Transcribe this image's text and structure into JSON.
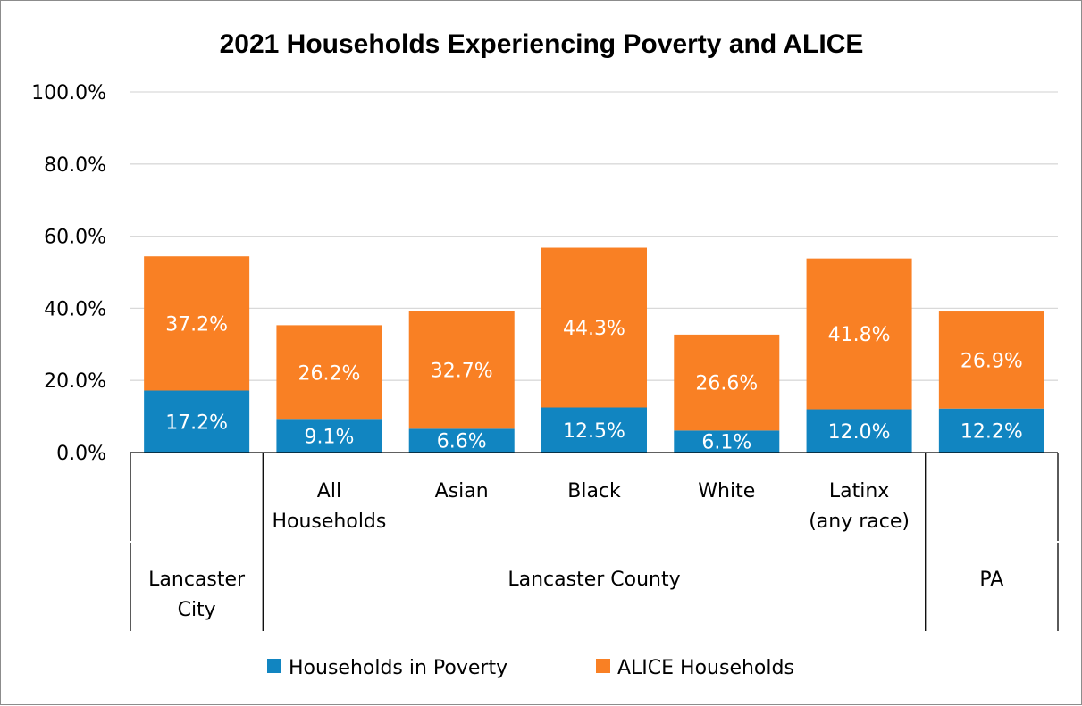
{
  "chart_data": {
    "type": "bar",
    "stacked": true,
    "title": "2021 Households Experiencing Poverty and ALICE",
    "xlabel": "",
    "ylabel": "",
    "ylim": [
      0,
      100
    ],
    "y_ticks": [
      "0.0%",
      "20.0%",
      "40.0%",
      "60.0%",
      "80.0%",
      "100.0%"
    ],
    "grid": true,
    "legend_position": "bottom",
    "categories": [
      {
        "lines": [],
        "group": "Lancaster City"
      },
      {
        "lines": [
          "All",
          "Households"
        ],
        "group": "Lancaster County"
      },
      {
        "lines": [
          "Asian"
        ],
        "group": "Lancaster County"
      },
      {
        "lines": [
          "Black"
        ],
        "group": "Lancaster County"
      },
      {
        "lines": [
          "White"
        ],
        "group": "Lancaster County"
      },
      {
        "lines": [
          "Latinx",
          "(any race)"
        ],
        "group": "Lancaster County"
      },
      {
        "lines": [],
        "group": "PA"
      }
    ],
    "groups": [
      {
        "lines": [
          "Lancaster",
          "City"
        ],
        "span": 1
      },
      {
        "lines": [
          "Lancaster County"
        ],
        "span": 5
      },
      {
        "lines": [
          "PA"
        ],
        "span": 1
      }
    ],
    "series": [
      {
        "name": "Households in Poverty",
        "color": "#1185c1",
        "values": [
          17.2,
          9.1,
          6.6,
          12.5,
          6.1,
          12.0,
          12.2
        ],
        "labels": [
          "17.2%",
          "9.1%",
          "6.6%",
          "12.5%",
          "6.1%",
          "12.0%",
          "12.2%"
        ]
      },
      {
        "name": "ALICE Households",
        "color": "#f98024",
        "values": [
          37.2,
          26.2,
          32.7,
          44.3,
          26.6,
          41.8,
          26.9
        ],
        "labels": [
          "37.2%",
          "26.2%",
          "32.7%",
          "44.3%",
          "26.6%",
          "41.8%",
          "26.9%"
        ]
      }
    ],
    "gridline_color": "#d9d9d9",
    "axis_color": "#000000"
  }
}
